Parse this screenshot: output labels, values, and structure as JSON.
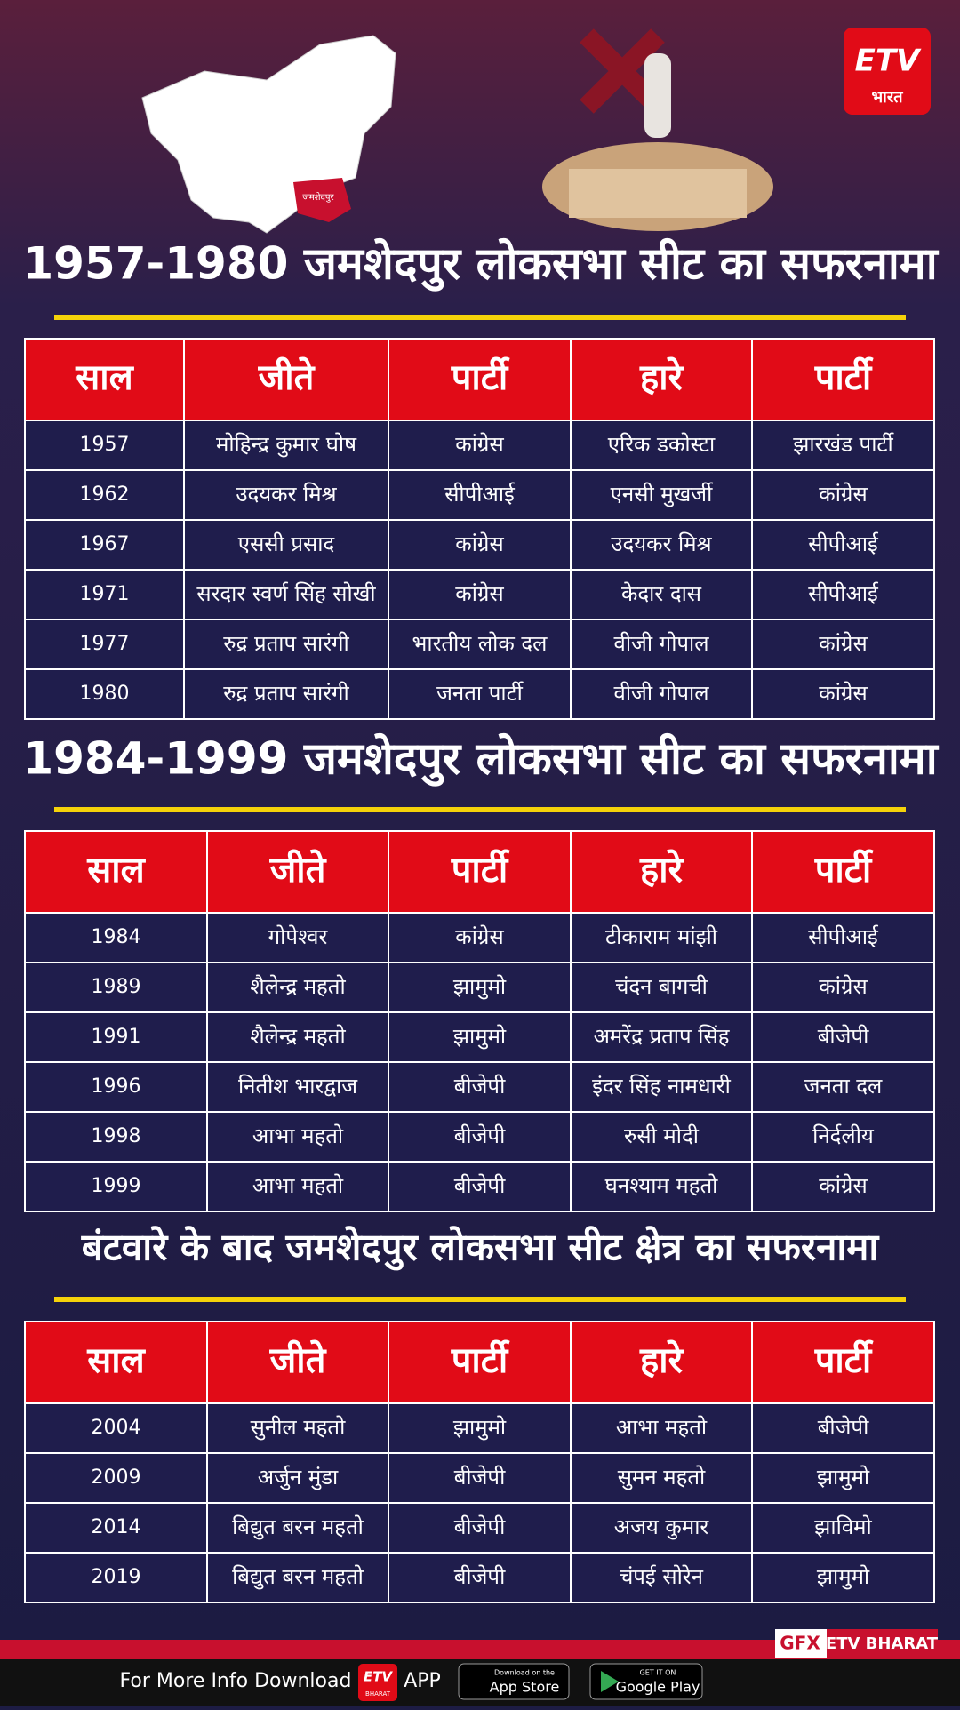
{
  "logo": {
    "mark": "ETV",
    "text": "भारत"
  },
  "map_label": "जमशेदपुर",
  "sections": [
    {
      "title": "1957-1980 जमशेदपुर लोकसभा सीट का सफरनामा",
      "header": [
        "साल",
        "जीते",
        "पार्टी",
        "हारे",
        "पार्टी"
      ],
      "rows": [
        [
          1957,
          "मोहिन्द्र कुमार घोष",
          "कांग्रेस",
          "एरिक डकोस्टा",
          "झारखंड पार्टी"
        ],
        [
          1962,
          "उदयकर मिश्र",
          "सीपीआई",
          "एनसी मुखर्जी",
          "कांग्रेस"
        ],
        [
          1967,
          "एससी प्रसाद",
          "कांग्रेस",
          "उदयकर मिश्र",
          "सीपीआई"
        ],
        [
          1971,
          "सरदार स्वर्ण सिंह सोखी",
          "कांग्रेस",
          "केदार दास",
          "सीपीआई"
        ],
        [
          1977,
          "रुद्र प्रताप सारंगी",
          "भारतीय लोक दल",
          "वीजी गोपाल",
          "कांग्रेस"
        ],
        [
          1980,
          "रुद्र प्रताप सारंगी",
          "जनता पार्टी",
          "वीजी गोपाल",
          "कांग्रेस"
        ]
      ]
    },
    {
      "title": "1984-1999 जमशेदपुर लोकसभा सीट का सफरनामा",
      "header": [
        "साल",
        "जीते",
        "पार्टी",
        "हारे",
        "पार्टी"
      ],
      "rows": [
        [
          1984,
          "गोपेश्वर",
          "कांग्रेस",
          "टीकाराम मांझी",
          "सीपीआई"
        ],
        [
          1989,
          "शैलेन्द्र महतो",
          "झामुमो",
          "चंदन बागची",
          "कांग्रेस"
        ],
        [
          1991,
          "शैलेन्द्र महतो",
          "झामुमो",
          "अमरेंद्र प्रताप सिंह",
          "बीजेपी"
        ],
        [
          1996,
          "नितीश भारद्वाज",
          "बीजेपी",
          "इंदर सिंह नामधारी",
          "जनता दल"
        ],
        [
          1998,
          "आभा महतो",
          "बीजेपी",
          "रुसी मोदी",
          "निर्दलीय"
        ],
        [
          1999,
          "आभा महतो",
          "बीजेपी",
          "घनश्याम महतो",
          "कांग्रेस"
        ]
      ]
    },
    {
      "title": "बंटवारे के बाद जमशेदपुर लोकसभा सीट क्षेत्र का सफरनामा",
      "header": [
        "साल",
        "जीते",
        "पार्टी",
        "हारे",
        "पार्टी"
      ],
      "rows": [
        [
          2004,
          "सुनील महतो",
          "झामुमो",
          "आभा महतो",
          "बीजेपी"
        ],
        [
          2009,
          "अर्जुन मुंडा",
          "बीजेपी",
          "सुमन महतो",
          "झामुमो"
        ],
        [
          2014,
          "बिद्युत बरन महतो",
          "बीजेपी",
          "अजय कुमार",
          "झाविमो"
        ],
        [
          2019,
          "बिद्युत बरन महतो",
          "बीजेपी",
          "चंपई सोरेन",
          "झामुमो"
        ]
      ]
    }
  ],
  "footer": {
    "gfx": "GFX",
    "brand": "ETV BHARAT",
    "info": "For More Info Download",
    "logo_mark": "ETV",
    "logo_text": "BHARAT",
    "app": "APP",
    "app_store_small": "Download on the",
    "app_store": "App Store",
    "google_small": "GET IT ON",
    "google": "Google Play"
  }
}
